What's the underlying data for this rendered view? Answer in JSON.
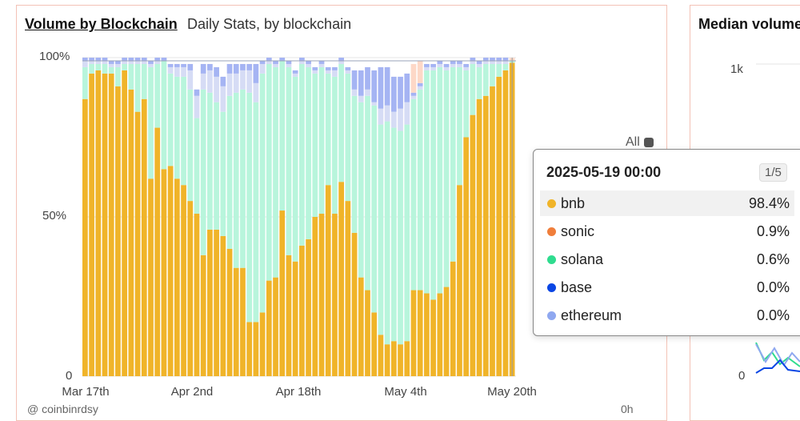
{
  "panel_main": {
    "title": "Volume by Blockchain",
    "subtitle": "Daily Stats, by blockchain"
  },
  "panel_right": {
    "title": "Median volume",
    "ytick_top": "1k",
    "ytick_bottom": "0"
  },
  "all_toggle": {
    "label": "All"
  },
  "footer": {
    "attribution": "@ coinbinrdsy",
    "right_badge": "0h"
  },
  "tooltip": {
    "date": "2025-05-19 00:00",
    "page": "1/5",
    "rows": [
      {
        "name": "bnb",
        "value": "98.4%",
        "color": "#f0b429"
      },
      {
        "name": "sonic",
        "value": "0.9%",
        "color": "#f07e3b"
      },
      {
        "name": "solana",
        "value": "0.6%",
        "color": "#2fdc8f"
      },
      {
        "name": "base",
        "value": "0.0%",
        "color": "#0a46e4"
      },
      {
        "name": "ethereum",
        "value": "0.0%",
        "color": "#8fa8f0"
      }
    ]
  },
  "chart_data": {
    "type": "bar",
    "stacked": true,
    "normalized_percent": true,
    "ylim": [
      0,
      100
    ],
    "yticks": [
      "0",
      "50%",
      "100%"
    ],
    "xticks": [
      "Mar 17th",
      "Apr 2nd",
      "Apr 18th",
      "May 4th",
      "May 20th"
    ],
    "x_start": "2025-03-15",
    "n_days": 66,
    "colors": {
      "bnb": "#f0b429",
      "solana": "#b8f5dc",
      "ethereum": "#d6dcf5",
      "base": "#a5b4f3",
      "sonic": "#fdd8c7"
    },
    "series": [
      {
        "name": "bnb",
        "values": [
          87,
          95,
          96,
          95,
          95,
          91,
          96,
          90,
          83,
          87,
          62,
          78,
          65,
          66,
          62,
          60,
          55,
          51,
          38,
          46,
          46,
          44,
          40,
          34,
          34,
          17,
          17,
          20,
          30,
          31,
          52,
          38,
          36,
          41,
          43,
          50,
          51,
          60,
          51,
          61,
          55,
          45,
          31,
          27,
          20,
          13,
          10,
          11,
          10,
          11,
          27,
          27,
          26,
          24,
          26,
          28,
          36,
          60,
          75,
          82,
          87,
          88,
          91,
          94,
          96,
          98.4
        ]
      },
      {
        "name": "solana",
        "values": [
          10,
          3,
          2,
          3,
          2,
          6,
          2,
          8,
          15,
          11,
          35,
          20,
          34,
          29,
          32,
          34,
          35,
          30,
          52,
          43,
          40,
          39,
          48,
          55,
          56,
          72,
          69,
          75,
          68,
          66,
          47,
          59,
          58,
          57,
          54,
          45,
          46,
          35,
          43,
          37,
          40,
          43,
          55,
          61,
          65,
          66,
          70,
          67,
          67,
          68,
          60,
          63,
          70,
          72,
          71,
          68,
          61,
          37,
          21,
          16,
          10,
          10,
          7,
          4,
          2,
          0.6
        ]
      },
      {
        "name": "ethereum",
        "values": [
          2,
          1,
          1,
          1,
          1,
          1,
          1,
          1,
          1,
          1,
          1,
          1,
          1,
          2,
          3,
          3,
          6,
          7,
          5,
          7,
          8,
          8,
          7,
          6,
          6,
          7,
          6,
          3,
          1,
          1,
          1,
          1,
          1,
          1,
          1,
          1,
          1,
          1,
          2,
          1,
          1,
          2,
          2,
          2,
          1,
          5,
          5,
          5,
          7,
          7,
          1,
          1,
          1,
          1,
          1,
          1,
          1,
          1,
          1,
          1,
          1,
          1,
          1,
          1,
          1,
          0
        ]
      },
      {
        "name": "base",
        "values": [
          1,
          1,
          1,
          1,
          1,
          1,
          1,
          1,
          1,
          1,
          1,
          1,
          1,
          1,
          1,
          1,
          2,
          2,
          3,
          2,
          3,
          3,
          3,
          3,
          2,
          2,
          6,
          1,
          1,
          1,
          1,
          1,
          1,
          1,
          1,
          1,
          1,
          1,
          1,
          1,
          1,
          6,
          8,
          7,
          10,
          13,
          12,
          11,
          10,
          9,
          1,
          1,
          1,
          1,
          1,
          1,
          1,
          1,
          1,
          1,
          1,
          1,
          1,
          1,
          1,
          0
        ]
      },
      {
        "name": "sonic",
        "values": [
          0,
          0,
          0,
          0,
          0,
          0,
          0,
          0,
          0,
          0,
          0,
          0,
          0,
          0,
          0,
          0,
          0,
          0,
          0,
          0,
          0,
          0,
          0,
          0,
          0,
          0,
          0,
          0,
          0,
          0,
          0,
          0,
          0,
          0,
          0,
          0,
          0,
          0,
          0,
          0,
          0,
          0,
          0,
          0,
          0,
          0,
          0,
          0,
          0,
          0,
          9,
          7,
          0,
          0,
          0,
          0,
          0,
          0,
          0,
          0,
          0,
          0,
          0,
          0,
          0,
          0.9
        ]
      }
    ]
  }
}
